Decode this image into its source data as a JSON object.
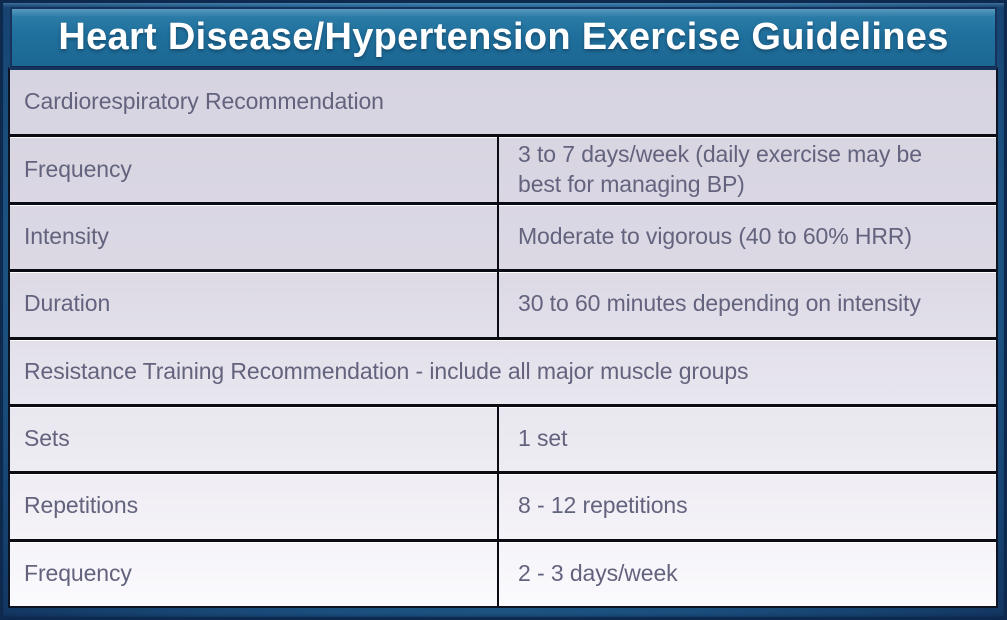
{
  "title": "Heart Disease/Hypertension Exercise Guidelines",
  "colors": {
    "title_bar_blue": "#1f6f9c",
    "frame_navy": "#15335c",
    "table_border_black": "#0b0b13",
    "cell_lavender_top": "#d7d4e1",
    "cell_white_bottom": "#fbfafd",
    "table_text": "#63637e",
    "title_text": "#ffffff"
  },
  "table": {
    "sections": [
      {
        "header": "Cardiorespiratory Recommendation",
        "rows": [
          {
            "label": "Frequency",
            "value": "3 to 7 days/week (daily exercise may be best for managing BP)"
          },
          {
            "label": "Intensity",
            "value": "Moderate to vigorous (40 to 60% HRR)"
          },
          {
            "label": "Duration",
            "value": "30 to 60 minutes depending on intensity"
          }
        ]
      },
      {
        "header": "Resistance Training Recommendation - include all major muscle groups",
        "rows": [
          {
            "label": "Sets",
            "value": "1 set"
          },
          {
            "label": "Repetitions",
            "value": "8 - 12 repetitions"
          },
          {
            "label": "Frequency",
            "value": "2 - 3 days/week"
          }
        ]
      }
    ]
  }
}
